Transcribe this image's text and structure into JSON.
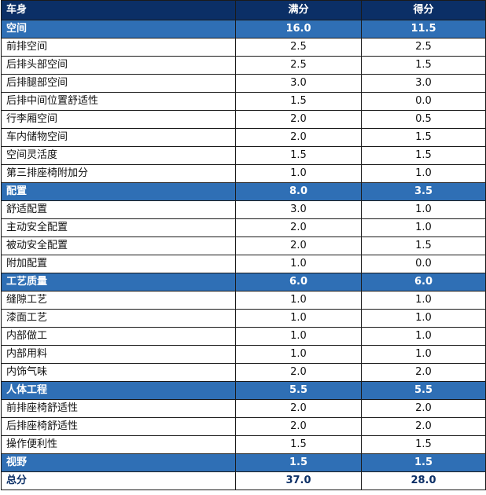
{
  "header": {
    "col1": "车身",
    "col2": "满分",
    "col3": "得分"
  },
  "sections": [
    {
      "name": "空间",
      "full": "16.0",
      "score": "11.5",
      "items": [
        {
          "name": "前排空间",
          "full": "2.5",
          "score": "2.5"
        },
        {
          "name": "后排头部空间",
          "full": "2.5",
          "score": "1.5"
        },
        {
          "name": "后排腿部空间",
          "full": "3.0",
          "score": "3.0"
        },
        {
          "name": "后排中间位置舒适性",
          "full": "1.5",
          "score": "0.0"
        },
        {
          "name": "行李厢空间",
          "full": "2.0",
          "score": "0.5"
        },
        {
          "name": "车内储物空间",
          "full": "2.0",
          "score": "1.5"
        },
        {
          "name": "空间灵活度",
          "full": "1.5",
          "score": "1.5"
        },
        {
          "name": "第三排座椅附加分",
          "full": "1.0",
          "score": "1.0"
        }
      ]
    },
    {
      "name": "配置",
      "full": "8.0",
      "score": "3.5",
      "items": [
        {
          "name": "舒适配置",
          "full": "3.0",
          "score": "1.0"
        },
        {
          "name": "主动安全配置",
          "full": "2.0",
          "score": "1.0"
        },
        {
          "name": "被动安全配置",
          "full": "2.0",
          "score": "1.5"
        },
        {
          "name": "附加配置",
          "full": "1.0",
          "score": "0.0"
        }
      ]
    },
    {
      "name": "工艺质量",
      "full": "6.0",
      "score": "6.0",
      "items": [
        {
          "name": "缝隙工艺",
          "full": "1.0",
          "score": "1.0"
        },
        {
          "name": "漆面工艺",
          "full": "1.0",
          "score": "1.0"
        },
        {
          "name": "内部做工",
          "full": "1.0",
          "score": "1.0"
        },
        {
          "name": "内部用料",
          "full": "1.0",
          "score": "1.0"
        },
        {
          "name": "内饰气味",
          "full": "2.0",
          "score": "2.0"
        }
      ]
    },
    {
      "name": "人体工程",
      "full": "5.5",
      "score": "5.5",
      "items": [
        {
          "name": "前排座椅舒适性",
          "full": "2.0",
          "score": "2.0"
        },
        {
          "name": "后排座椅舒适性",
          "full": "2.0",
          "score": "2.0"
        },
        {
          "name": "操作便利性",
          "full": "1.5",
          "score": "1.5"
        }
      ]
    },
    {
      "name": "视野",
      "full": "1.5",
      "score": "1.5",
      "items": []
    }
  ],
  "total": {
    "name": "总分",
    "full": "37.0",
    "score": "28.0"
  },
  "colors": {
    "header_bg": "#0b2f66",
    "section_bg": "#2f6fb5",
    "total_text": "#0b2f66"
  }
}
